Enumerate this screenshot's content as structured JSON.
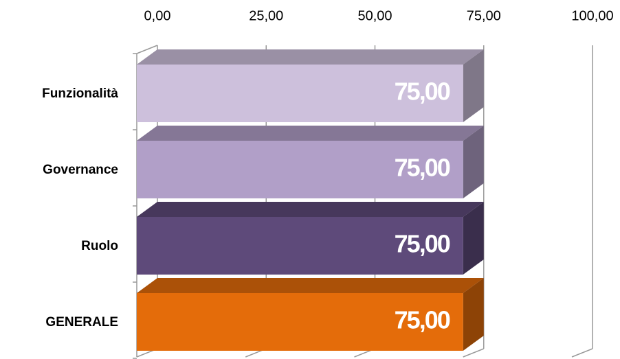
{
  "chart_data": {
    "type": "bar3d",
    "orientation": "horizontal",
    "categories": [
      "Funzionalità",
      "Governance",
      "Ruolo",
      "GENERALE"
    ],
    "values": [
      75,
      75,
      75,
      75
    ],
    "value_labels": [
      "75,00",
      "75,00",
      "75,00",
      "75,00"
    ],
    "colors": [
      "#cdc0dc",
      "#b19fc8",
      "#5e4a7a",
      "#e46c0a"
    ],
    "xlim": [
      0,
      100
    ],
    "xticks": [
      {
        "value": 0,
        "label": "0,00"
      },
      {
        "value": 25,
        "label": "25,00"
      },
      {
        "value": 50,
        "label": "50,00"
      },
      {
        "value": 75,
        "label": "75,00"
      },
      {
        "value": 100,
        "label": "100,00"
      }
    ],
    "grid": true
  }
}
